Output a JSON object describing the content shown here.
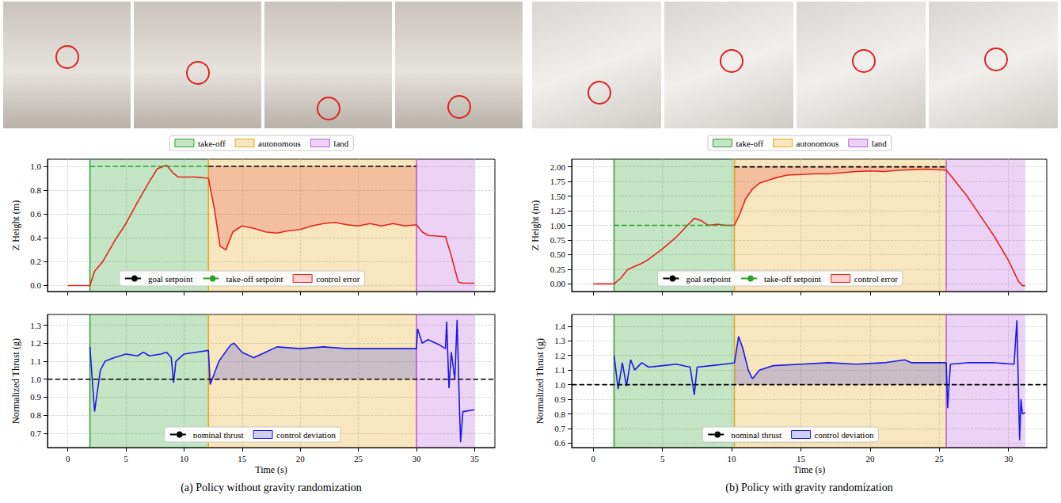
{
  "chart_data": [
    {
      "caption": "(a) Policy without gravity randomization",
      "legend": "upper center",
      "phases": [
        {
          "name": "take-off",
          "start": 1.9,
          "end": 12.1,
          "color": "#2ca02c"
        },
        {
          "name": "autonomous",
          "start": 12.1,
          "end": 30,
          "color": "#e6a817"
        },
        {
          "name": "land",
          "start": 30,
          "end": 35,
          "color": "#b95fd6"
        }
      ],
      "charts": [
        {
          "type": "line",
          "ylabel": "Z Height (m)",
          "xlim": [
            -1.75,
            36.75
          ],
          "xticks": [
            0,
            5,
            10,
            15,
            20,
            25,
            30,
            35
          ],
          "ylim": [
            -0.05,
            1.06
          ],
          "yticks": [
            {
              "value": 0,
              "label": "0.0"
            },
            0.2,
            0.4,
            0.6,
            0.8,
            {
              "value": 1,
              "label": "1.0"
            }
          ],
          "grid": true,
          "tick_labels": "y",
          "legend": "lower center",
          "series": [
            {
              "type": "line",
              "color": "#e8211d",
              "x": [
                0,
                1.9,
                2.3,
                3,
                4,
                5,
                6,
                7,
                7.7,
                8.5,
                9,
                9.5,
                10,
                11,
                12.1,
                12.6,
                13.1,
                13.6,
                14.2,
                15,
                16,
                17,
                18,
                19,
                20,
                21,
                22,
                23,
                24,
                25,
                26,
                27,
                28,
                29,
                30,
                30.5,
                31,
                32.5,
                33,
                33.6,
                34,
                35
              ],
              "values": [
                0,
                0,
                0.12,
                0.2,
                0.37,
                0.52,
                0.7,
                0.87,
                0.98,
                1.01,
                0.95,
                0.91,
                0.91,
                0.91,
                0.9,
                0.65,
                0.33,
                0.3,
                0.45,
                0.5,
                0.48,
                0.45,
                0.44,
                0.46,
                0.47,
                0.5,
                0.52,
                0.53,
                0.51,
                0.5,
                0.52,
                0.5,
                0.52,
                0.5,
                0.51,
                0.45,
                0.42,
                0.41,
                0.25,
                0.03,
                0.02,
                0.02
              ]
            },
            {
              "name": "goal setpoint",
              "type": "line",
              "color": "#000000",
              "line_style": "dashed",
              "x": [
                12.1,
                30
              ],
              "values": [
                1,
                1
              ]
            },
            {
              "name": "take-off setpoint",
              "type": "line",
              "color": "#2ca02c",
              "line_style": "dashed",
              "x": [
                1.9,
                12.1
              ],
              "values": [
                1,
                1
              ]
            },
            {
              "name": "control error",
              "type": "band",
              "color": "#e8211d",
              "x": [
                12.1,
                30
              ]
            }
          ]
        },
        {
          "type": "line",
          "xlabel": "Time (s)",
          "ylabel": "Normalized Thrust (g)",
          "xlim": [
            -1.75,
            36.75
          ],
          "xticks": [
            0,
            5,
            10,
            15,
            20,
            25,
            30,
            35
          ],
          "ylim": [
            0.62,
            1.36
          ],
          "yticks": [
            0.7,
            0.8,
            0.9,
            {
              "value": 1,
              "label": "1.0"
            },
            1.1,
            1.2,
            1.3
          ],
          "grid": true,
          "legend": "lower center",
          "series": [
            {
              "type": "line",
              "color": "#1a1ae6",
              "x": [
                1.9,
                2.3,
                2.8,
                3.2,
                4,
                5,
                6,
                6.5,
                7,
                8,
                8.5,
                8.9,
                9.1,
                9.3,
                10,
                11,
                12.1,
                12.25,
                13,
                14,
                14.3,
                15,
                16,
                17,
                18,
                20,
                22,
                24,
                26,
                28,
                30,
                30.1,
                30.5,
                31,
                32,
                32.5,
                32.6,
                32.8,
                33,
                33.3,
                33.5,
                33.7,
                33.8,
                34,
                35
              ],
              "values": [
                1.18,
                0.82,
                1.05,
                1.1,
                1.12,
                1.14,
                1.13,
                1.15,
                1.13,
                1.14,
                1.15,
                1.12,
                0.98,
                1.1,
                1.14,
                1.15,
                1.16,
                0.97,
                1.1,
                1.19,
                1.2,
                1.15,
                1.12,
                1.15,
                1.18,
                1.17,
                1.18,
                1.17,
                1.17,
                1.17,
                1.17,
                1.28,
                1.2,
                1.22,
                1.19,
                1.17,
                1.32,
                0.95,
                1.15,
                1.0,
                1.33,
                0.85,
                0.65,
                0.82,
                0.83
              ]
            },
            {
              "name": "nominal thrust",
              "type": "line",
              "color": "#000000",
              "line_style": "dashed",
              "x": [
                -1.75,
                36.75
              ],
              "values": [
                1,
                1
              ]
            },
            {
              "name": "control deviation",
              "type": "band",
              "color": "#1a1ae6",
              "x": [
                12.1,
                30
              ]
            }
          ]
        }
      ]
    },
    {
      "caption": "(b) Policy with gravity randomization",
      "legend": "upper center",
      "phases": [
        {
          "name": "take-off",
          "start": 1.5,
          "end": 10.2,
          "color": "#2ca02c"
        },
        {
          "name": "autonomous",
          "start": 10.2,
          "end": 25.5,
          "color": "#e6a817"
        },
        {
          "name": "land",
          "start": 25.5,
          "end": 31.2,
          "color": "#b95fd6"
        }
      ],
      "charts": [
        {
          "type": "line",
          "ylabel": "Z Height (m)",
          "xlim": [
            -1.56,
            32.76
          ],
          "xticks": [
            0,
            5,
            10,
            15,
            20,
            25,
            30
          ],
          "ylim": [
            -0.13,
            2.13
          ],
          "yticks": [
            {
              "value": 0,
              "label": "0.00"
            },
            0.25,
            {
              "value": 0.5,
              "label": "0.50"
            },
            0.75,
            {
              "value": 1,
              "label": "1.00"
            },
            1.25,
            {
              "value": 1.5,
              "label": "1.50"
            },
            1.75,
            {
              "value": 2,
              "label": "2.00"
            }
          ],
          "grid": true,
          "tick_labels": "y",
          "legend": "lower center",
          "series": [
            {
              "type": "line",
              "color": "#e8211d",
              "x": [
                0,
                1.5,
                2,
                2.5,
                3,
                3.5,
                4,
                5,
                6,
                6.8,
                7.3,
                7.8,
                8.3,
                9,
                9.5,
                10.2,
                10.6,
                11,
                11.5,
                12,
                13,
                14,
                15,
                16,
                17,
                18,
                19,
                20,
                21,
                22,
                23,
                24,
                25,
                25.5,
                26,
                27,
                28,
                29,
                30,
                30.7,
                31,
                31.2
              ],
              "values": [
                0,
                0,
                0.1,
                0.25,
                0.3,
                0.35,
                0.42,
                0.6,
                0.8,
                1.0,
                1.12,
                1.08,
                1.0,
                1.02,
                1.0,
                1.0,
                1.2,
                1.45,
                1.62,
                1.72,
                1.8,
                1.86,
                1.87,
                1.88,
                1.88,
                1.9,
                1.92,
                1.93,
                1.92,
                1.94,
                1.95,
                1.96,
                1.95,
                1.94,
                1.8,
                1.5,
                1.15,
                0.8,
                0.4,
                0.05,
                -0.03,
                -0.03
              ]
            },
            {
              "name": "goal setpoint",
              "type": "line",
              "color": "#000000",
              "line_style": "dashed",
              "x": [
                10.2,
                25.5
              ],
              "values": [
                2,
                2
              ]
            },
            {
              "name": "take-off setpoint",
              "type": "line",
              "color": "#2ca02c",
              "line_style": "dashed",
              "x": [
                1.5,
                10.2
              ],
              "values": [
                1,
                1
              ]
            },
            {
              "name": "control error",
              "type": "band",
              "color": "#e8211d",
              "x": [
                10.2,
                25.5
              ]
            }
          ]
        },
        {
          "type": "line",
          "xlabel": "Time (s)",
          "ylabel": "Normalized Thrust (g)",
          "xlim": [
            -1.56,
            32.76
          ],
          "xticks": [
            0,
            5,
            10,
            15,
            20,
            25,
            30
          ],
          "ylim": [
            0.57,
            1.48
          ],
          "yticks": [
            0.6,
            0.7,
            0.8,
            0.9,
            {
              "value": 1,
              "label": "1.0"
            },
            1.1,
            1.2,
            1.3,
            1.4
          ],
          "grid": true,
          "legend": "lower center",
          "series": [
            {
              "type": "line",
              "color": "#1a1ae6",
              "x": [
                1.5,
                1.8,
                2.1,
                2.4,
                2.7,
                3,
                3.5,
                4,
                5,
                6,
                7,
                7.3,
                7.5,
                8.5,
                9.5,
                10.2,
                10.5,
                10.8,
                11.2,
                11.5,
                12,
                13,
                15,
                17,
                19,
                21,
                22.5,
                23,
                25.5,
                25.6,
                25.8,
                27,
                29,
                30.4,
                30.6,
                30.8,
                30.9,
                31,
                31.2
              ],
              "values": [
                1.2,
                0.97,
                1.15,
                0.99,
                1.17,
                1.1,
                1.15,
                1.12,
                1.13,
                1.14,
                1.12,
                0.93,
                1.12,
                1.13,
                1.14,
                1.15,
                1.33,
                1.25,
                1.1,
                1.04,
                1.1,
                1.13,
                1.14,
                1.15,
                1.14,
                1.15,
                1.17,
                1.15,
                1.15,
                0.84,
                1.14,
                1.15,
                1.15,
                1.14,
                1.44,
                0.62,
                0.9,
                0.8,
                0.81
              ]
            },
            {
              "name": "nominal thrust",
              "type": "line",
              "color": "#000000",
              "line_style": "dashed",
              "x": [
                -1.56,
                32.76
              ],
              "values": [
                1,
                1
              ]
            },
            {
              "name": "control deviation",
              "type": "band",
              "color": "#1a1ae6",
              "x": [
                10.2,
                25.5
              ]
            }
          ]
        }
      ]
    }
  ]
}
